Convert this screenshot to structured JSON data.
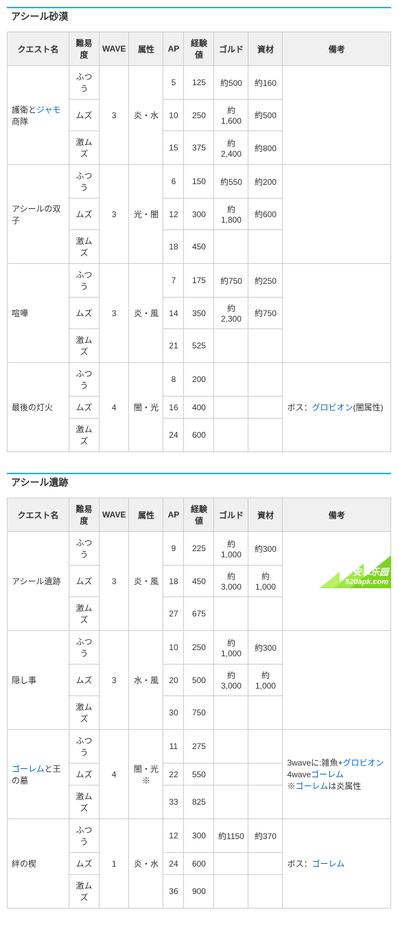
{
  "sections": [
    {
      "title": "アシール砂漠",
      "columns": [
        "クエスト名",
        "難易度",
        "WAVE",
        "属性",
        "AP",
        "経験値",
        "ゴルド",
        "資材",
        "備考"
      ],
      "quests": [
        {
          "name_parts": [
            {
              "t": "護衛と",
              "link": false
            },
            {
              "t": "ジャモ",
              "link": true
            },
            {
              "t": "商隊",
              "link": false
            }
          ],
          "wave": "3",
          "attr": "炎・水",
          "remarks": [],
          "rows": [
            {
              "diff": "ふつう",
              "ap": "5",
              "exp": "125",
              "gold": "約500",
              "mat": "約160"
            },
            {
              "diff": "ムズ",
              "ap": "10",
              "exp": "250",
              "gold": "約1,600",
              "mat": "約500"
            },
            {
              "diff": "激ムズ",
              "ap": "15",
              "exp": "375",
              "gold": "約2,400",
              "mat": "約800"
            }
          ]
        },
        {
          "name_parts": [
            {
              "t": "アシールの双子",
              "link": false
            }
          ],
          "wave": "3",
          "attr": "光・闇",
          "remarks": [],
          "rows": [
            {
              "diff": "ふつう",
              "ap": "6",
              "exp": "150",
              "gold": "約550",
              "mat": "約200"
            },
            {
              "diff": "ムズ",
              "ap": "12",
              "exp": "300",
              "gold": "約1,800",
              "mat": "約600"
            },
            {
              "diff": "激ムズ",
              "ap": "18",
              "exp": "450",
              "gold": "",
              "mat": ""
            }
          ]
        },
        {
          "name_parts": [
            {
              "t": "喧嘩",
              "link": false
            }
          ],
          "wave": "3",
          "attr": "炎・風",
          "remarks": [],
          "rows": [
            {
              "diff": "ふつう",
              "ap": "7",
              "exp": "175",
              "gold": "約750",
              "mat": "約250"
            },
            {
              "diff": "ムズ",
              "ap": "14",
              "exp": "350",
              "gold": "約2,300",
              "mat": "約750"
            },
            {
              "diff": "激ムズ",
              "ap": "21",
              "exp": "525",
              "gold": "",
              "mat": ""
            }
          ]
        },
        {
          "name_parts": [
            {
              "t": "最後の灯火",
              "link": false
            }
          ],
          "wave": "4",
          "attr": "闇・光",
          "remarks": [
            {
              "t": "ボス：",
              "link": false
            },
            {
              "t": "グロビオン",
              "link": true
            },
            {
              "t": "(闇属性)",
              "link": false
            }
          ],
          "rows": [
            {
              "diff": "ふつう",
              "ap": "8",
              "exp": "200",
              "gold": "",
              "mat": ""
            },
            {
              "diff": "ムズ",
              "ap": "16",
              "exp": "400",
              "gold": "",
              "mat": ""
            },
            {
              "diff": "激ムズ",
              "ap": "24",
              "exp": "600",
              "gold": "",
              "mat": ""
            }
          ]
        }
      ]
    },
    {
      "title": "アシール遺跡",
      "columns": [
        "クエスト名",
        "難易度",
        "WAVE",
        "属性",
        "AP",
        "経験値",
        "ゴルド",
        "資材",
        "備考"
      ],
      "quests": [
        {
          "name_parts": [
            {
              "t": "アシール遺跡",
              "link": false
            }
          ],
          "wave": "3",
          "attr": "炎・風",
          "remarks": [],
          "rows": [
            {
              "diff": "ふつう",
              "ap": "9",
              "exp": "225",
              "gold": "約1,000",
              "mat": "約300"
            },
            {
              "diff": "ムズ",
              "ap": "18",
              "exp": "450",
              "gold": "約3,000",
              "mat": "約1,000"
            },
            {
              "diff": "激ムズ",
              "ap": "27",
              "exp": "675",
              "gold": "",
              "mat": ""
            }
          ]
        },
        {
          "name_parts": [
            {
              "t": "隠し事",
              "link": false
            }
          ],
          "wave": "3",
          "attr": "水・風",
          "remarks": [],
          "rows": [
            {
              "diff": "ふつう",
              "ap": "10",
              "exp": "250",
              "gold": "約1,000",
              "mat": "約300"
            },
            {
              "diff": "ムズ",
              "ap": "20",
              "exp": "500",
              "gold": "約3,000",
              "mat": "約1,000"
            },
            {
              "diff": "激ムズ",
              "ap": "30",
              "exp": "750",
              "gold": "",
              "mat": ""
            }
          ]
        },
        {
          "name_parts": [
            {
              "t": "ゴーレム",
              "link": true
            },
            {
              "t": "と王の墓",
              "link": false
            }
          ],
          "wave": "4",
          "attr": "闇・光※",
          "remarks": [
            {
              "t": "3waveに:雑魚+",
              "link": false
            },
            {
              "t": "グロビオン",
              "link": true
            },
            {
              "t": "\n4wave",
              "link": false
            },
            {
              "t": "ゴーレム",
              "link": true
            },
            {
              "t": "\n※",
              "link": false
            },
            {
              "t": "ゴーレム",
              "link": true
            },
            {
              "t": "は炎属性",
              "link": false
            }
          ],
          "rows": [
            {
              "diff": "ふつう",
              "ap": "11",
              "exp": "275",
              "gold": "",
              "mat": ""
            },
            {
              "diff": "ムズ",
              "ap": "22",
              "exp": "550",
              "gold": "",
              "mat": ""
            },
            {
              "diff": "激ムズ",
              "ap": "33",
              "exp": "825",
              "gold": "",
              "mat": ""
            }
          ]
        },
        {
          "name_parts": [
            {
              "t": "絆の楔",
              "link": false
            }
          ],
          "wave": "1",
          "attr": "炎・水",
          "remarks": [
            {
              "t": "ボス：",
              "link": false
            },
            {
              "t": "ゴーレム",
              "link": true
            }
          ],
          "rows": [
            {
              "diff": "ふつう",
              "ap": "12",
              "exp": "300",
              "gold": "約1150",
              "mat": "約370"
            },
            {
              "diff": "ムズ",
              "ap": "24",
              "exp": "600",
              "gold": "",
              "mat": ""
            },
            {
              "diff": "激ムズ",
              "ap": "36",
              "exp": "900",
              "gold": "",
              "mat": ""
            }
          ]
        }
      ]
    }
  ],
  "colwidths": [
    "90",
    "44",
    "40",
    "50",
    "30",
    "44",
    "50",
    "50",
    "auto"
  ],
  "watermark": {
    "line1": "安卓乐园",
    "line2": "520apk.com"
  }
}
